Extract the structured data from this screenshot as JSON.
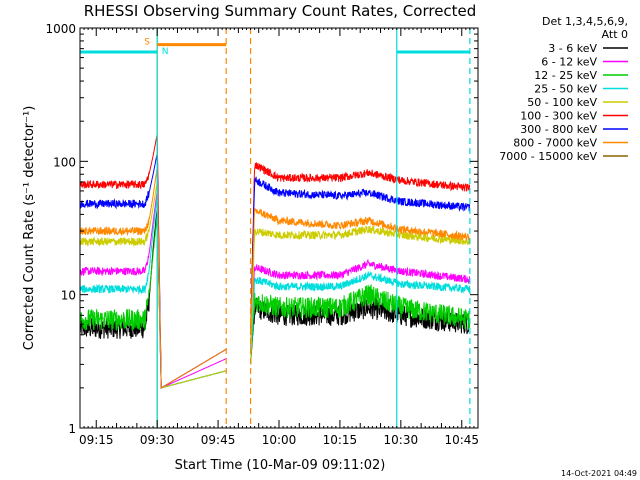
{
  "chart_data": {
    "type": "line",
    "title": "RHESSI Observing Summary Count Rates, Corrected",
    "xlabel": "Start Time (10-Mar-09 09:11:02)",
    "ylabel": "Corrected Count Rate (s⁻¹ detector⁻¹)",
    "y_scale": "log",
    "xlim": [
      "09:11",
      "10:49"
    ],
    "ylim": [
      1,
      1000
    ],
    "x_ticks": [
      "09:15",
      "09:30",
      "09:45",
      "10:00",
      "10:15",
      "10:30",
      "10:45"
    ],
    "y_ticks": [
      "1",
      "10",
      "100",
      "1000"
    ],
    "legend_position": "right",
    "legend_header": [
      "Det 1,3,4,5,6,9,",
      "Att 0"
    ],
    "data_gap": [
      "09:47",
      "09:53"
    ],
    "series": [
      {
        "name": "3 - 6 keV",
        "color": "#000000",
        "points": [
          [
            "09:11",
            5.6
          ],
          [
            "09:27",
            5.6
          ],
          [
            "09:28",
            9
          ],
          [
            "09:29",
            22
          ],
          [
            "09:30",
            45
          ],
          [
            "09:31",
            2
          ],
          [
            "09:53",
            3
          ],
          [
            "09:54",
            8
          ],
          [
            "10:00",
            7
          ],
          [
            "10:15",
            7
          ],
          [
            "10:22",
            8
          ],
          [
            "10:30",
            7
          ],
          [
            "10:47",
            6
          ]
        ]
      },
      {
        "name": "6 - 12 keV",
        "color": "#ff00ff",
        "points": [
          [
            "09:11",
            15
          ],
          [
            "09:27",
            15
          ],
          [
            "09:28",
            20
          ],
          [
            "09:29",
            35
          ],
          [
            "09:30",
            60
          ],
          [
            "09:31",
            2
          ],
          [
            "09:53",
            4
          ],
          [
            "09:54",
            16
          ],
          [
            "10:00",
            14
          ],
          [
            "10:15",
            14
          ],
          [
            "10:22",
            17
          ],
          [
            "10:30",
            15
          ],
          [
            "10:47",
            13
          ]
        ]
      },
      {
        "name": "12 - 25 keV",
        "color": "#00cc00",
        "points": [
          [
            "09:11",
            6.5
          ],
          [
            "09:27",
            6.5
          ],
          [
            "09:28",
            10
          ],
          [
            "09:29",
            20
          ],
          [
            "09:30",
            40
          ],
          [
            "09:31",
            2
          ],
          [
            "09:53",
            3
          ],
          [
            "09:54",
            9
          ],
          [
            "10:00",
            8
          ],
          [
            "10:15",
            8
          ],
          [
            "10:22",
            10
          ],
          [
            "10:30",
            8
          ],
          [
            "10:47",
            6.5
          ]
        ]
      },
      {
        "name": "25 - 50 keV",
        "color": "#00dddd",
        "points": [
          [
            "09:11",
            11
          ],
          [
            "09:27",
            11
          ],
          [
            "09:28",
            15
          ],
          [
            "09:29",
            30
          ],
          [
            "09:30",
            55
          ],
          [
            "09:31",
            2
          ],
          [
            "09:53",
            3
          ],
          [
            "09:54",
            13
          ],
          [
            "10:00",
            11.5
          ],
          [
            "10:15",
            11.5
          ],
          [
            "10:22",
            14
          ],
          [
            "10:30",
            12
          ],
          [
            "10:47",
            11
          ]
        ]
      },
      {
        "name": "50 - 100 keV",
        "color": "#cccc00",
        "points": [
          [
            "09:11",
            25
          ],
          [
            "09:27",
            25
          ],
          [
            "09:28",
            30
          ],
          [
            "09:29",
            45
          ],
          [
            "09:30",
            70
          ],
          [
            "09:31",
            2
          ],
          [
            "09:53",
            3
          ],
          [
            "09:54",
            30
          ],
          [
            "10:00",
            28
          ],
          [
            "10:15",
            28
          ],
          [
            "10:22",
            31
          ],
          [
            "10:30",
            28
          ],
          [
            "10:47",
            25
          ]
        ]
      },
      {
        "name": "100 - 300 keV",
        "color": "#ff0000",
        "points": [
          [
            "09:11",
            67
          ],
          [
            "09:27",
            67
          ],
          [
            "09:28",
            80
          ],
          [
            "09:29",
            110
          ],
          [
            "09:30",
            160
          ],
          [
            "09:31",
            2
          ],
          [
            "09:53",
            5
          ],
          [
            "09:54",
            95
          ],
          [
            "10:00",
            75
          ],
          [
            "10:15",
            75
          ],
          [
            "10:22",
            82
          ],
          [
            "10:30",
            72
          ],
          [
            "10:47",
            63
          ]
        ]
      },
      {
        "name": "300 - 800 keV",
        "color": "#0000ff",
        "points": [
          [
            "09:11",
            48
          ],
          [
            "09:27",
            48
          ],
          [
            "09:28",
            58
          ],
          [
            "09:29",
            80
          ],
          [
            "09:30",
            115
          ],
          [
            "09:31",
            2
          ],
          [
            "09:53",
            5
          ],
          [
            "09:54",
            73
          ],
          [
            "10:00",
            58
          ],
          [
            "10:15",
            55
          ],
          [
            "10:22",
            58
          ],
          [
            "10:30",
            50
          ],
          [
            "10:47",
            45
          ]
        ]
      },
      {
        "name": "800 - 7000 keV",
        "color": "#ff8800",
        "points": [
          [
            "09:11",
            30
          ],
          [
            "09:27",
            30
          ],
          [
            "09:28",
            36
          ],
          [
            "09:29",
            55
          ],
          [
            "09:30",
            90
          ],
          [
            "09:31",
            2
          ],
          [
            "09:53",
            5
          ],
          [
            "09:54",
            43
          ],
          [
            "10:00",
            36
          ],
          [
            "10:15",
            33
          ],
          [
            "10:22",
            36
          ],
          [
            "10:30",
            31
          ],
          [
            "10:47",
            27
          ]
        ]
      },
      {
        "name": "7000 - 15000 keV",
        "color": "#886600",
        "points": []
      }
    ],
    "annotations": [
      {
        "label": "S",
        "color": "#ff8800",
        "x_from": "09:30",
        "x_to": "09:47",
        "y": 750
      },
      {
        "label": "N",
        "color": "#00dddd",
        "x_from": "09:11",
        "x_to": "09:30",
        "y": 660
      },
      {
        "label": "",
        "color": "#00dddd",
        "x_from": "10:29",
        "x_to": "10:47",
        "y": 660
      }
    ],
    "event_lines": [
      {
        "x": "09:30",
        "color": "#ff8800",
        "style": "solid"
      },
      {
        "x": "09:30",
        "color": "#00dddd",
        "style": "solid"
      },
      {
        "x": "09:47",
        "color": "#ff8800",
        "style": "dashed"
      },
      {
        "x": "09:53",
        "color": "#ff8800",
        "style": "dashed"
      },
      {
        "x": "10:29",
        "color": "#00dddd",
        "style": "solid"
      },
      {
        "x": "10:47",
        "color": "#00dddd",
        "style": "dashed"
      }
    ]
  },
  "footer": {
    "timestamp": "14-Oct-2021 04:49"
  }
}
